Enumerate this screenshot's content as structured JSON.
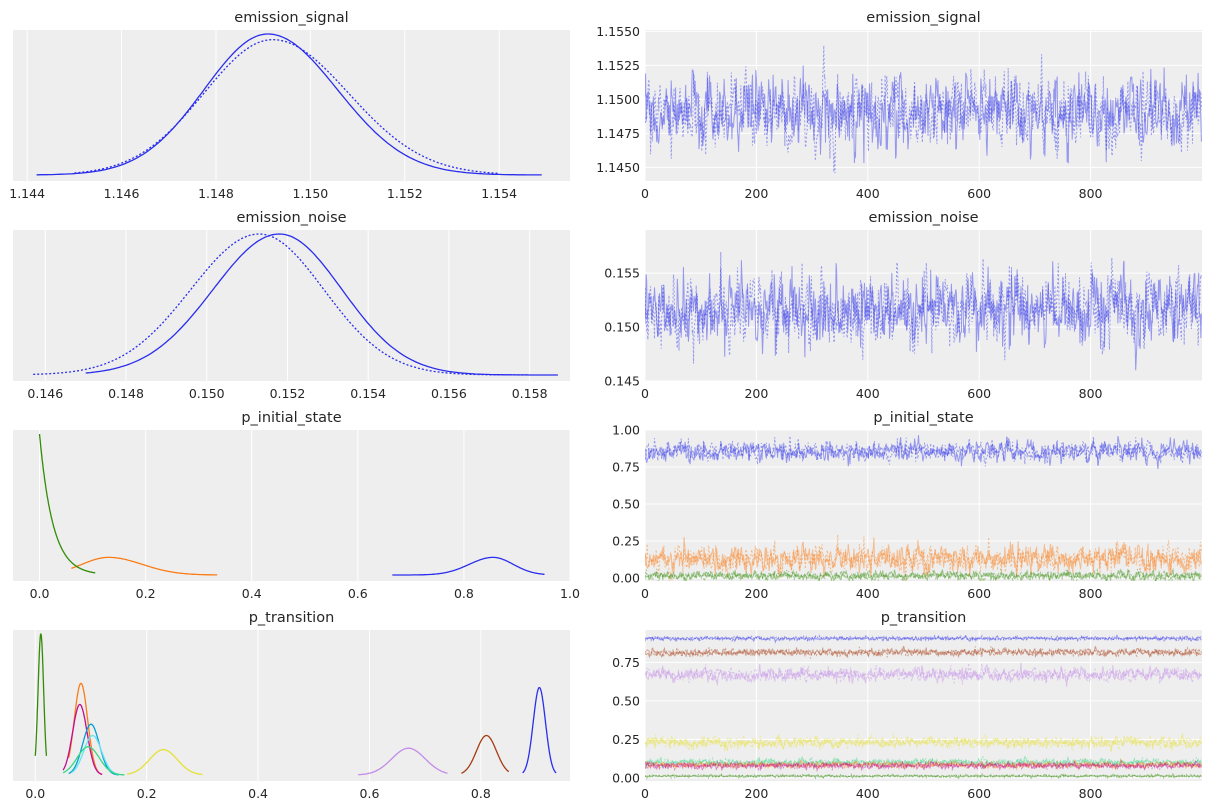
{
  "chart_data": [
    {
      "type": "line",
      "panel": "kde",
      "title": "emission_signal",
      "xlim": [
        1.1437,
        1.1555
      ],
      "xticks": [
        1.144,
        1.146,
        1.148,
        1.15,
        1.152,
        1.154
      ],
      "xtick_labels": [
        "1.144",
        "1.146",
        "1.148",
        "1.150",
        "1.152",
        "1.154"
      ],
      "grid": true,
      "series": [
        {
          "color": "#2a2eec",
          "style": "solid",
          "peak": 1.1491,
          "sd": 0.00135,
          "range": [
            1.1442,
            1.1549
          ],
          "height": 1.0,
          "skew": 0.3
        },
        {
          "color": "#2a2eec",
          "style": "dotted",
          "peak": 1.1492,
          "sd": 0.00145,
          "range": [
            1.145,
            1.154
          ],
          "height": 0.96,
          "skew": 0.35
        }
      ]
    },
    {
      "type": "line",
      "panel": "trace",
      "title": "emission_signal",
      "xlim": [
        0,
        1000
      ],
      "ylim": [
        1.144,
        1.1551
      ],
      "xticks": [
        0,
        200,
        400,
        600,
        800
      ],
      "xtick_labels": [
        "0",
        "200",
        "400",
        "600",
        "800"
      ],
      "yticks": [
        1.145,
        1.1475,
        1.15,
        1.1525,
        1.155
      ],
      "ytick_labels": [
        "1.1450",
        "1.1475",
        "1.1500",
        "1.1525",
        "1.1550"
      ],
      "grid": true,
      "series": [
        {
          "color": "#2a2eec",
          "center": 1.1491,
          "sd": 0.0013
        }
      ]
    },
    {
      "type": "line",
      "panel": "kde",
      "title": "emission_noise",
      "xlim": [
        0.1452,
        0.159
      ],
      "xticks": [
        0.146,
        0.148,
        0.15,
        0.152,
        0.154,
        0.156,
        0.158
      ],
      "xtick_labels": [
        "0.146",
        "0.148",
        "0.150",
        "0.152",
        "0.154",
        "0.156",
        "0.158"
      ],
      "grid": true,
      "series": [
        {
          "color": "#2a2eec",
          "style": "solid",
          "peak": 0.1518,
          "sd": 0.00155,
          "range": [
            0.147,
            0.1587
          ],
          "height": 1.0,
          "skew": -0.2
        },
        {
          "color": "#2a2eec",
          "style": "dotted",
          "peak": 0.1513,
          "sd": 0.0016,
          "range": [
            0.1457,
            0.158
          ],
          "height": 1.0,
          "skew": -0.2
        }
      ]
    },
    {
      "type": "line",
      "panel": "trace",
      "title": "emission_noise",
      "xlim": [
        0,
        1000
      ],
      "ylim": [
        0.145,
        0.159
      ],
      "xticks": [
        0,
        200,
        400,
        600,
        800
      ],
      "xtick_labels": [
        "0",
        "200",
        "400",
        "600",
        "800"
      ],
      "yticks": [
        0.145,
        0.15,
        0.155
      ],
      "ytick_labels": [
        "0.145",
        "0.150",
        "0.155"
      ],
      "grid": true,
      "series": [
        {
          "color": "#2a2eec",
          "center": 0.1517,
          "sd": 0.0016
        }
      ]
    },
    {
      "type": "line",
      "panel": "kde",
      "title": "p_initial_state",
      "xlim": [
        -0.05,
        1.0
      ],
      "xticks": [
        0.0,
        0.2,
        0.4,
        0.6,
        0.8,
        1.0
      ],
      "xtick_labels": [
        "0.0",
        "0.2",
        "0.4",
        "0.6",
        "0.8",
        "1.0"
      ],
      "grid": true,
      "series": [
        {
          "color": "#2a2eec",
          "kind": "gauss",
          "peak": 0.855,
          "sd": 0.038,
          "range": [
            0.665,
            0.952
          ],
          "height": 0.125,
          "skew": -0.6
        },
        {
          "color": "#fa7c17",
          "kind": "gauss",
          "peak": 0.13,
          "sd": 0.05,
          "range": [
            0.06,
            0.335
          ],
          "height": 0.125,
          "skew": 0.9
        },
        {
          "color": "#328c06",
          "kind": "exp",
          "scale": 0.025,
          "range": [
            0.0,
            0.105
          ],
          "height": 1.0
        }
      ]
    },
    {
      "type": "line",
      "panel": "trace",
      "title": "p_initial_state",
      "xlim": [
        0,
        1000
      ],
      "ylim": [
        -0.02,
        1.0
      ],
      "xticks": [
        0,
        200,
        400,
        600,
        800
      ],
      "xtick_labels": [
        "0",
        "200",
        "400",
        "600",
        "800"
      ],
      "yticks": [
        0.0,
        0.25,
        0.5,
        0.75,
        1.0
      ],
      "ytick_labels": [
        "0.00",
        "0.25",
        "0.50",
        "0.75",
        "1.00"
      ],
      "grid": true,
      "series": [
        {
          "color": "#2a2eec",
          "center": 0.855,
          "sd": 0.035
        },
        {
          "color": "#fa7c17",
          "center": 0.13,
          "sd": 0.045
        },
        {
          "color": "#328c06",
          "center": 0.015,
          "sd": 0.015
        }
      ]
    },
    {
      "type": "line",
      "panel": "kde",
      "title": "p_transition",
      "xlim": [
        -0.04,
        0.96
      ],
      "xticks": [
        0.0,
        0.2,
        0.4,
        0.6,
        0.8
      ],
      "xtick_labels": [
        "0.0",
        "0.2",
        "0.4",
        "0.6",
        "0.8"
      ],
      "grid": true,
      "series": [
        {
          "color": "#328c06",
          "kind": "gauss",
          "peak": 0.01,
          "sd": 0.005,
          "range": [
            0.0,
            0.02
          ],
          "height": 1.0
        },
        {
          "color": "#fa7c17",
          "kind": "gauss",
          "peak": 0.082,
          "sd": 0.012,
          "range": [
            0.06,
            0.12
          ],
          "height": 0.65
        },
        {
          "color": "#c10c90",
          "kind": "gauss",
          "peak": 0.08,
          "sd": 0.013,
          "range": [
            0.05,
            0.12
          ],
          "height": 0.5
        },
        {
          "color": "#00a0d0",
          "kind": "gauss",
          "peak": 0.1,
          "sd": 0.015,
          "range": [
            0.06,
            0.15
          ],
          "height": 0.36
        },
        {
          "color": "#65e5f3",
          "kind": "gauss",
          "peak": 0.103,
          "sd": 0.016,
          "range": [
            0.065,
            0.15
          ],
          "height": 0.28
        },
        {
          "color": "#36d885",
          "kind": "gauss",
          "peak": 0.095,
          "sd": 0.02,
          "range": [
            0.05,
            0.16
          ],
          "height": 0.2
        },
        {
          "color": "#e6e135",
          "kind": "gauss",
          "peak": 0.23,
          "sd": 0.025,
          "range": [
            0.165,
            0.3
          ],
          "height": 0.18
        },
        {
          "color": "#c38be8",
          "kind": "gauss",
          "peak": 0.67,
          "sd": 0.03,
          "range": [
            0.58,
            0.74
          ],
          "height": 0.19
        },
        {
          "color": "#a63b13",
          "kind": "gauss",
          "peak": 0.81,
          "sd": 0.018,
          "range": [
            0.765,
            0.85
          ],
          "height": 0.28
        },
        {
          "color": "#2a2eec",
          "kind": "gauss",
          "peak": 0.905,
          "sd": 0.011,
          "range": [
            0.875,
            0.935
          ],
          "height": 0.62
        }
      ]
    },
    {
      "type": "line",
      "panel": "trace",
      "title": "p_transition",
      "xlim": [
        0,
        1000
      ],
      "ylim": [
        -0.02,
        0.96
      ],
      "xticks": [
        0,
        200,
        400,
        600,
        800
      ],
      "xtick_labels": [
        "0",
        "200",
        "400",
        "600",
        "800"
      ],
      "yticks": [
        0.0,
        0.25,
        0.5,
        0.75
      ],
      "ytick_labels": [
        "0.00",
        "0.25",
        "0.50",
        "0.75"
      ],
      "grid": true,
      "series": [
        {
          "color": "#2a2eec",
          "center": 0.905,
          "sd": 0.006
        },
        {
          "color": "#a63b13",
          "center": 0.815,
          "sd": 0.012
        },
        {
          "color": "#c38be8",
          "center": 0.67,
          "sd": 0.022
        },
        {
          "color": "#e6e135",
          "center": 0.23,
          "sd": 0.018
        },
        {
          "color": "#36d885",
          "center": 0.1,
          "sd": 0.012
        },
        {
          "color": "#fa7c17",
          "center": 0.085,
          "sd": 0.01
        },
        {
          "color": "#c10c90",
          "center": 0.08,
          "sd": 0.01
        },
        {
          "color": "#328c06",
          "center": 0.012,
          "sd": 0.004
        }
      ]
    }
  ]
}
